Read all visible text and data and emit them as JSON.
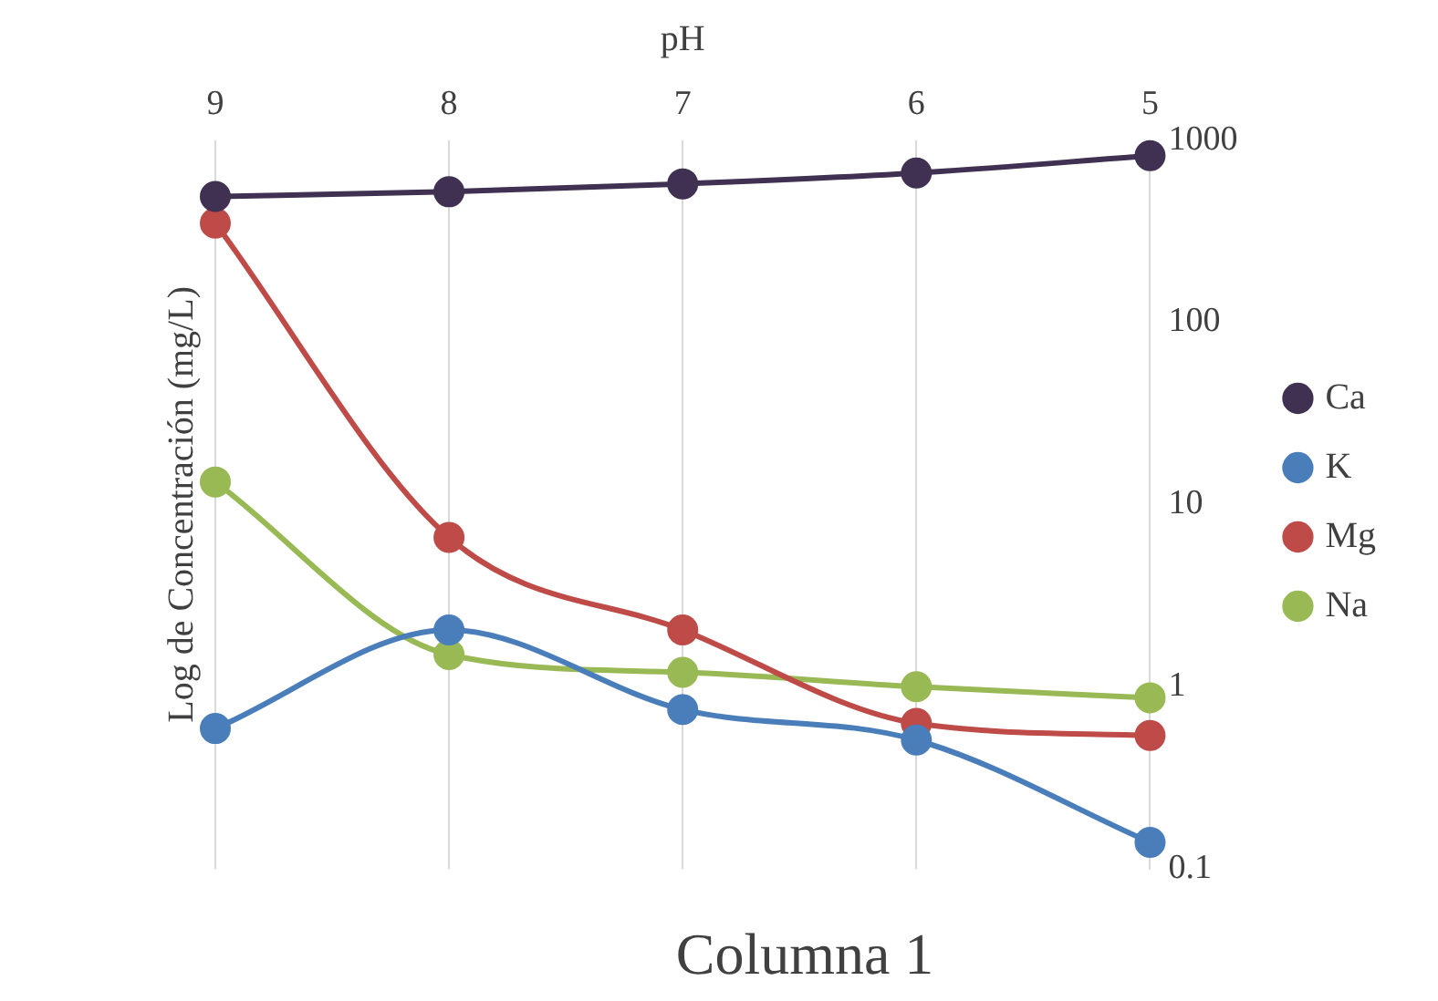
{
  "chart_data": {
    "type": "line",
    "title": "Columna 1",
    "xlabel": "pH",
    "ylabel": "Log de Concentración (mg/L)",
    "categories": [
      "9",
      "8",
      "7",
      "6",
      "5"
    ],
    "series": [
      {
        "name": "Ca",
        "color": "#403152",
        "values": [
          490,
          520,
          575,
          660,
          820
        ]
      },
      {
        "name": "K",
        "color": "#4a7ebb",
        "values": [
          0.59,
          2.05,
          0.75,
          0.51,
          0.14
        ]
      },
      {
        "name": "Mg",
        "color": "#be4b48",
        "values": [
          350,
          6.6,
          2.05,
          0.63,
          0.54
        ]
      },
      {
        "name": "Na",
        "color": "#98b954",
        "values": [
          13.3,
          1.5,
          1.2,
          1.0,
          0.87
        ]
      }
    ],
    "log": "y",
    "ylim": [
      0.1,
      1000
    ],
    "yticks": [
      0.1,
      1,
      10,
      100,
      1000
    ],
    "grid": "x",
    "legend": "right",
    "marker": "circle",
    "line_style": "solid"
  }
}
